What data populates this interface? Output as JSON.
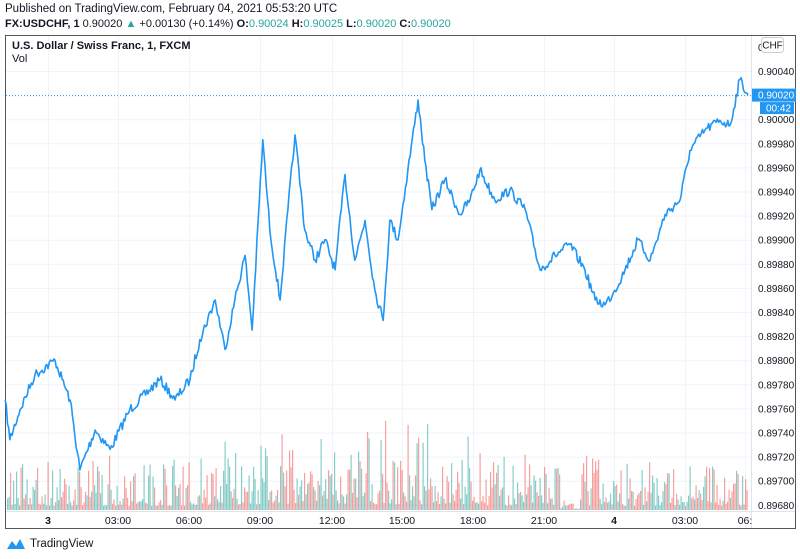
{
  "header": {
    "published": "Published on TradingView.com, February 04, 2021 05:53:20 UTC",
    "symbol": "FX:USDCHF, 1",
    "last": "0.90020",
    "change": "+0.00130 (+0.14%)",
    "o_label": "O:",
    "o": "0.90024",
    "h_label": "H:",
    "h": "0.90025",
    "l_label": "L:",
    "l": "0.90020",
    "c_label": "C:",
    "c": "0.90020",
    "up_icon": "triangle-up-icon"
  },
  "legend": {
    "title": "U.S. Dollar / Swiss Franc, 1, FXCM",
    "vol": "Vol"
  },
  "currency_badge": "CHF",
  "current_price": {
    "value": "0.90020",
    "countdown": "00:42",
    "color": "#2196f3"
  },
  "brand": {
    "name": "TradingView",
    "color": "#2196f3"
  },
  "colors": {
    "line": "#2196f3",
    "vol_up": "#26a69a",
    "vol_down": "#ef5350"
  },
  "chart_data": {
    "type": "line",
    "title": "U.S. Dollar / Swiss Franc, 1, FXCM",
    "x_tick_labels": [
      "3",
      "03:00",
      "06:00",
      "09:00",
      "12:00",
      "15:00",
      "18:00",
      "21:00",
      "4",
      "03:00",
      "06:"
    ],
    "y_tick_labels": [
      "0.90040",
      "0.90000",
      "0.89980",
      "0.89960",
      "0.89940",
      "0.89920",
      "0.89900",
      "0.89880",
      "0.89860",
      "0.89840",
      "0.89820",
      "0.89800",
      "0.89780",
      "0.89760",
      "0.89740",
      "0.89720",
      "0.89700",
      "0.89680"
    ],
    "ylim": [
      0.8968,
      0.9006
    ],
    "grid": true,
    "series": [
      {
        "points": [
          [
            "Feb 02 22:11",
            0.89767
          ],
          [
            "Feb 02 22:23",
            0.89734
          ],
          [
            "Feb 02 22:49",
            0.89759
          ],
          [
            "Feb 02 23:27",
            0.89788
          ],
          [
            "Feb 03 00:18",
            0.898
          ],
          [
            "Feb 03 00:36",
            0.89784
          ],
          [
            "Feb 03 00:56",
            0.89767
          ],
          [
            "Feb 03 01:21",
            0.89709
          ],
          [
            "Feb 03 02:00",
            0.89742
          ],
          [
            "Feb 03 02:38",
            0.89726
          ],
          [
            "Feb 03 03:28",
            0.89759
          ],
          [
            "Feb 03 04:45",
            0.89784
          ],
          [
            "Feb 03 05:23",
            0.89767
          ],
          [
            "Feb 03 06:01",
            0.89784
          ],
          [
            "Feb 03 06:26",
            0.89817
          ],
          [
            "Feb 03 07:05",
            0.8985
          ],
          [
            "Feb 03 07:30",
            0.89809
          ],
          [
            "Feb 03 07:55",
            0.8985
          ],
          [
            "Feb 03 08:21",
            0.89887
          ],
          [
            "Feb 03 08:39",
            0.89825
          ],
          [
            "Feb 03 09:06",
            0.89983
          ],
          [
            "Feb 03 09:24",
            0.89908
          ],
          [
            "Feb 03 09:50",
            0.8985
          ],
          [
            "Feb 03 10:10",
            0.89925
          ],
          [
            "Feb 03 10:28",
            0.89987
          ],
          [
            "Feb 03 10:53",
            0.89908
          ],
          [
            "Feb 03 11:19",
            0.89883
          ],
          [
            "Feb 03 11:44",
            0.899
          ],
          [
            "Feb 03 12:10",
            0.89875
          ],
          [
            "Feb 03 12:35",
            0.89954
          ],
          [
            "Feb 03 13:00",
            0.89883
          ],
          [
            "Feb 03 13:26",
            0.89916
          ],
          [
            "Feb 03 13:51",
            0.89858
          ],
          [
            "Feb 03 14:12",
            0.89833
          ],
          [
            "Feb 03 14:29",
            0.89916
          ],
          [
            "Feb 03 14:50",
            0.899
          ],
          [
            "Feb 03 15:15",
            0.89958
          ],
          [
            "Feb 03 15:41",
            0.90016
          ],
          [
            "Feb 03 15:58",
            0.89966
          ],
          [
            "Feb 03 16:16",
            0.89925
          ],
          [
            "Feb 03 16:49",
            0.8995
          ],
          [
            "Feb 03 17:27",
            0.89921
          ],
          [
            "Feb 03 17:53",
            0.89933
          ],
          [
            "Feb 03 18:18",
            0.89958
          ],
          [
            "Feb 03 18:56",
            0.89933
          ],
          [
            "Feb 03 19:34",
            0.89941
          ],
          [
            "Feb 03 20:13",
            0.89925
          ],
          [
            "Feb 03 20:51",
            0.89875
          ],
          [
            "Feb 03 21:29",
            0.89887
          ],
          [
            "Feb 03 22:07",
            0.89896
          ],
          [
            "Feb 03 22:45",
            0.89875
          ],
          [
            "Feb 03 23:11",
            0.8985
          ],
          [
            "Feb 03 23:36",
            0.89846
          ],
          [
            "Feb 04 00:01",
            0.89858
          ],
          [
            "Feb 04 00:27",
            0.89875
          ],
          [
            "Feb 04 01:00",
            0.899
          ],
          [
            "Feb 04 01:31",
            0.89883
          ],
          [
            "Feb 04 02:09",
            0.89921
          ],
          [
            "Feb 04 02:47",
            0.89933
          ],
          [
            "Feb 04 03:12",
            0.89974
          ],
          [
            "Feb 04 03:50",
            0.89991
          ],
          [
            "Feb 04 04:28",
            0.89999
          ],
          [
            "Feb 04 04:54",
            0.89995
          ],
          [
            "Feb 04 05:19",
            0.90033
          ],
          [
            "Feb 04 05:40",
            0.9002
          ]
        ]
      }
    ]
  }
}
